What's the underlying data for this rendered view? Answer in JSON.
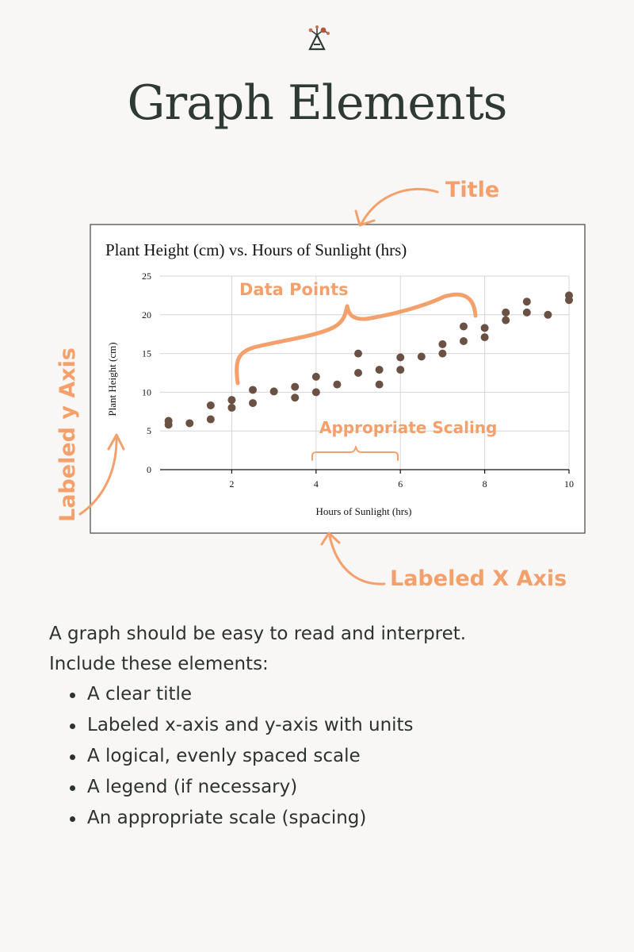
{
  "page": {
    "title": "Graph Elements",
    "intro_line1": "A graph should be easy to read and interpret.",
    "intro_line2": "Include these elements:",
    "elements": [
      "A clear title",
      "Labeled x-axis and y-axis with units",
      "A logical, evenly spaced scale",
      "A legend (if necessary)",
      "An appropriate scale (spacing)"
    ]
  },
  "annotations": {
    "title": "Title",
    "data_points": "Data Points",
    "y_axis": "Labeled y Axis",
    "x_axis": "Labeled X Axis",
    "scaling": "Appropriate Scaling"
  },
  "colors": {
    "annotation": "#f4a06c",
    "points": "#6b5144",
    "heading": "#2f3a34"
  },
  "icons": {
    "logo": "molecule-triangle-logo-icon"
  },
  "chart_data": {
    "type": "scatter",
    "title": "Plant Height (cm) vs. Hours of Sunlight (hrs)",
    "xlabel": "Hours of Sunlight (hrs)",
    "ylabel": "Plant Height (cm)",
    "xlim": [
      0.3,
      10
    ],
    "ylim": [
      0,
      25
    ],
    "xticks": [
      2,
      4,
      6,
      8,
      10
    ],
    "yticks": [
      0,
      5,
      10,
      15,
      20,
      25
    ],
    "grid": true,
    "points": [
      {
        "x": 0.5,
        "y": 6.3
      },
      {
        "x": 0.5,
        "y": 5.8
      },
      {
        "x": 1,
        "y": 6
      },
      {
        "x": 1.5,
        "y": 8.3
      },
      {
        "x": 1.5,
        "y": 6.5
      },
      {
        "x": 2,
        "y": 9
      },
      {
        "x": 2,
        "y": 8
      },
      {
        "x": 2.5,
        "y": 10.3
      },
      {
        "x": 2.5,
        "y": 8.6
      },
      {
        "x": 3,
        "y": 10.1
      },
      {
        "x": 3.5,
        "y": 10.7
      },
      {
        "x": 3.5,
        "y": 9.3
      },
      {
        "x": 4,
        "y": 12
      },
      {
        "x": 4,
        "y": 10
      },
      {
        "x": 4.5,
        "y": 11
      },
      {
        "x": 5,
        "y": 15
      },
      {
        "x": 5,
        "y": 12.5
      },
      {
        "x": 5.5,
        "y": 12.9
      },
      {
        "x": 5.5,
        "y": 11
      },
      {
        "x": 6,
        "y": 14.5
      },
      {
        "x": 6,
        "y": 12.9
      },
      {
        "x": 6.5,
        "y": 14.6
      },
      {
        "x": 7,
        "y": 16.2
      },
      {
        "x": 7,
        "y": 15
      },
      {
        "x": 7.5,
        "y": 18.5
      },
      {
        "x": 7.5,
        "y": 16.6
      },
      {
        "x": 8,
        "y": 18.3
      },
      {
        "x": 8,
        "y": 17.1
      },
      {
        "x": 8.5,
        "y": 20.3
      },
      {
        "x": 8.5,
        "y": 19.3
      },
      {
        "x": 9,
        "y": 21.7
      },
      {
        "x": 9,
        "y": 20.3
      },
      {
        "x": 9.5,
        "y": 20
      },
      {
        "x": 10,
        "y": 22.5
      },
      {
        "x": 10,
        "y": 21.9
      }
    ]
  }
}
